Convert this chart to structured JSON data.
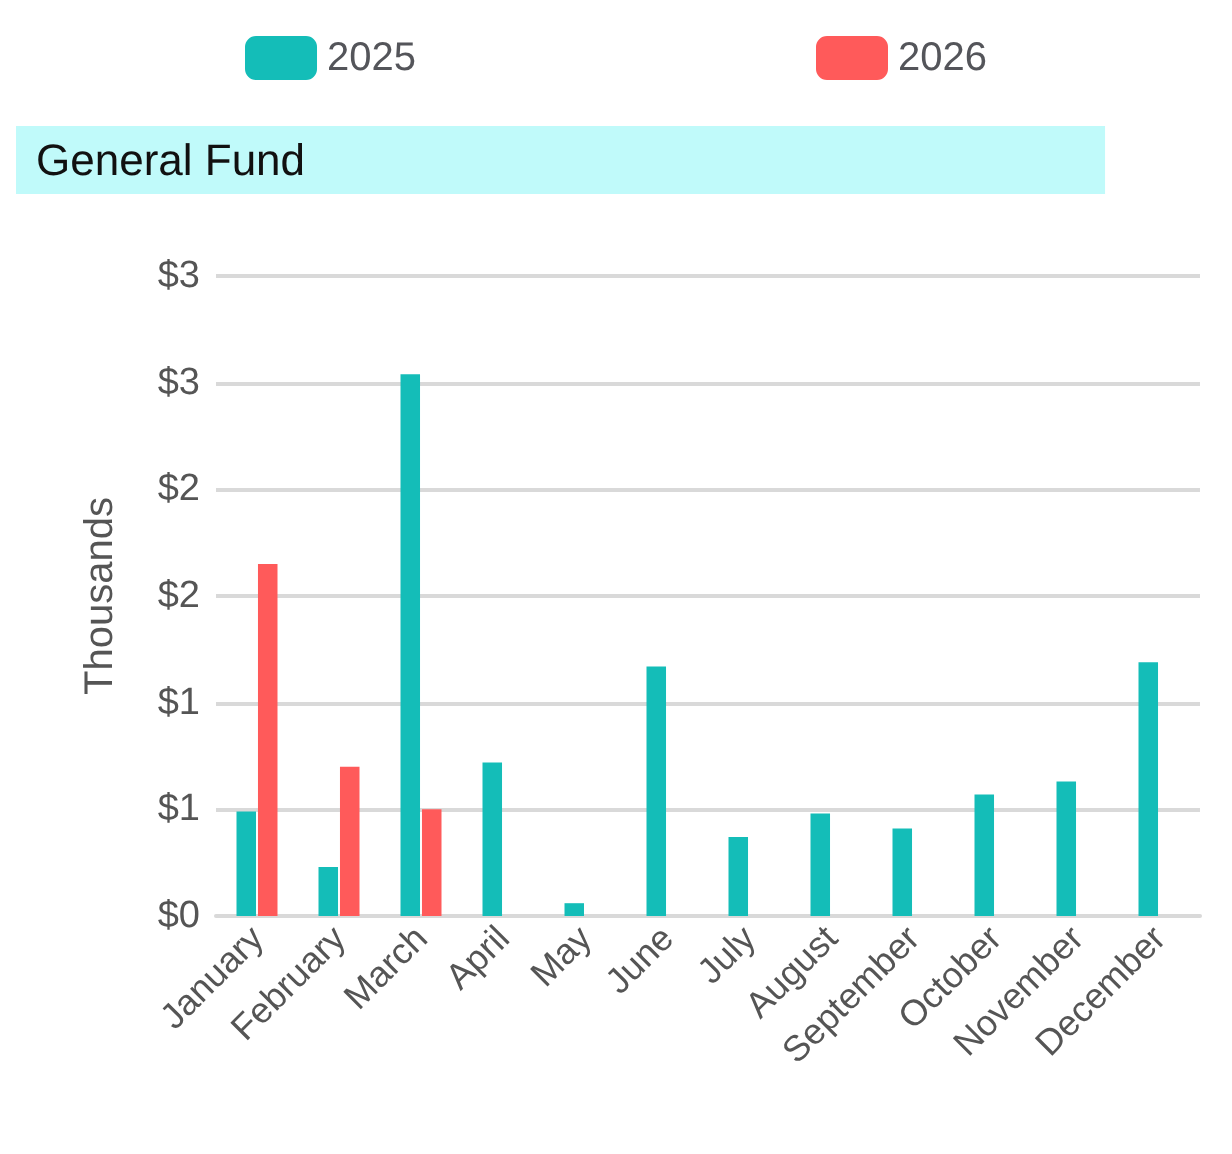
{
  "chart_data": {
    "type": "bar",
    "title": "General Fund",
    "ylabel": "Thousands",
    "categories": [
      "January",
      "February",
      "March",
      "April",
      "May",
      "June",
      "July",
      "August",
      "September",
      "October",
      "November",
      "December"
    ],
    "series": [
      {
        "name": "2025",
        "color": "#14bdb8",
        "values": [
          0.49,
          0.23,
          2.54,
          0.72,
          0.06,
          1.17,
          0.37,
          0.48,
          0.41,
          0.57,
          0.63,
          1.19
        ]
      },
      {
        "name": "2026",
        "color": "#ff5a5a",
        "values": [
          1.65,
          0.7,
          0.5,
          null,
          null,
          null,
          null,
          null,
          null,
          null,
          null,
          null
        ]
      }
    ],
    "ylim": [
      0,
      3
    ],
    "yticks": [
      {
        "value": 0,
        "label": "$0"
      },
      {
        "value": 0.5,
        "label": "$1"
      },
      {
        "value": 1,
        "label": "$1"
      },
      {
        "value": 1.5,
        "label": "$2"
      },
      {
        "value": 2,
        "label": "$2"
      },
      {
        "value": 2.5,
        "label": "$3"
      },
      {
        "value": 3,
        "label": "$3"
      }
    ],
    "grid": "y",
    "legend": "top"
  }
}
